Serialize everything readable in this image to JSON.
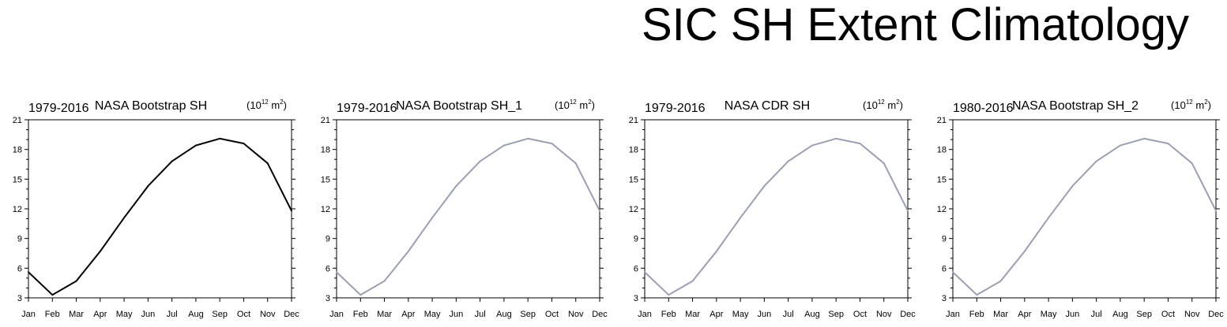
{
  "title": "SIC SH Extent Climatology",
  "units_base": "(10",
  "units_exp": "12",
  "units_mid": " m",
  "units_exp2": "2",
  "units_close": ")",
  "colors": {
    "black_line": "#000000",
    "gray_line": "#9aa0b4",
    "axis": "#000000"
  },
  "chart_data": [
    {
      "type": "line",
      "period": "1979-2016",
      "title": "NASA Bootstrap SH",
      "line_color": "black_line",
      "categories": [
        "Jan",
        "Feb",
        "Mar",
        "Apr",
        "May",
        "Jun",
        "Jul",
        "Aug",
        "Sep",
        "Oct",
        "Nov",
        "Dec"
      ],
      "values": [
        5.6,
        3.3,
        4.7,
        7.7,
        11.1,
        14.3,
        16.8,
        18.4,
        19.1,
        18.6,
        16.6,
        11.8
      ],
      "ylim": [
        3,
        21
      ],
      "yticks": [
        3,
        6,
        9,
        12,
        15,
        18,
        21
      ]
    },
    {
      "type": "line",
      "period": "1979-2016",
      "title": "NASA Bootstrap SH_1",
      "line_color": "gray_line",
      "categories": [
        "Jan",
        "Feb",
        "Mar",
        "Apr",
        "May",
        "Jun",
        "Jul",
        "Aug",
        "Sep",
        "Oct",
        "Nov",
        "Dec"
      ],
      "values": [
        5.6,
        3.3,
        4.7,
        7.7,
        11.1,
        14.3,
        16.8,
        18.4,
        19.1,
        18.6,
        16.6,
        11.8
      ],
      "ylim": [
        3,
        21
      ],
      "yticks": [
        3,
        6,
        9,
        12,
        15,
        18,
        21
      ]
    },
    {
      "type": "line",
      "period": "1979-2016",
      "title": "NASA CDR SH",
      "line_color": "gray_line",
      "categories": [
        "Jan",
        "Feb",
        "Mar",
        "Apr",
        "May",
        "Jun",
        "Jul",
        "Aug",
        "Sep",
        "Oct",
        "Nov",
        "Dec"
      ],
      "values": [
        5.6,
        3.3,
        4.7,
        7.7,
        11.1,
        14.3,
        16.8,
        18.4,
        19.1,
        18.6,
        16.6,
        11.8
      ],
      "ylim": [
        3,
        21
      ],
      "yticks": [
        3,
        6,
        9,
        12,
        15,
        18,
        21
      ]
    },
    {
      "type": "line",
      "period": "1980-2016",
      "title": "NASA Bootstrap SH_2",
      "line_color": "gray_line",
      "categories": [
        "Jan",
        "Feb",
        "Mar",
        "Apr",
        "May",
        "Jun",
        "Jul",
        "Aug",
        "Sep",
        "Oct",
        "Nov",
        "Dec"
      ],
      "values": [
        5.6,
        3.3,
        4.7,
        7.7,
        11.1,
        14.3,
        16.8,
        18.4,
        19.1,
        18.6,
        16.6,
        11.8
      ],
      "ylim": [
        3,
        21
      ],
      "yticks": [
        3,
        6,
        9,
        12,
        15,
        18,
        21
      ]
    }
  ]
}
